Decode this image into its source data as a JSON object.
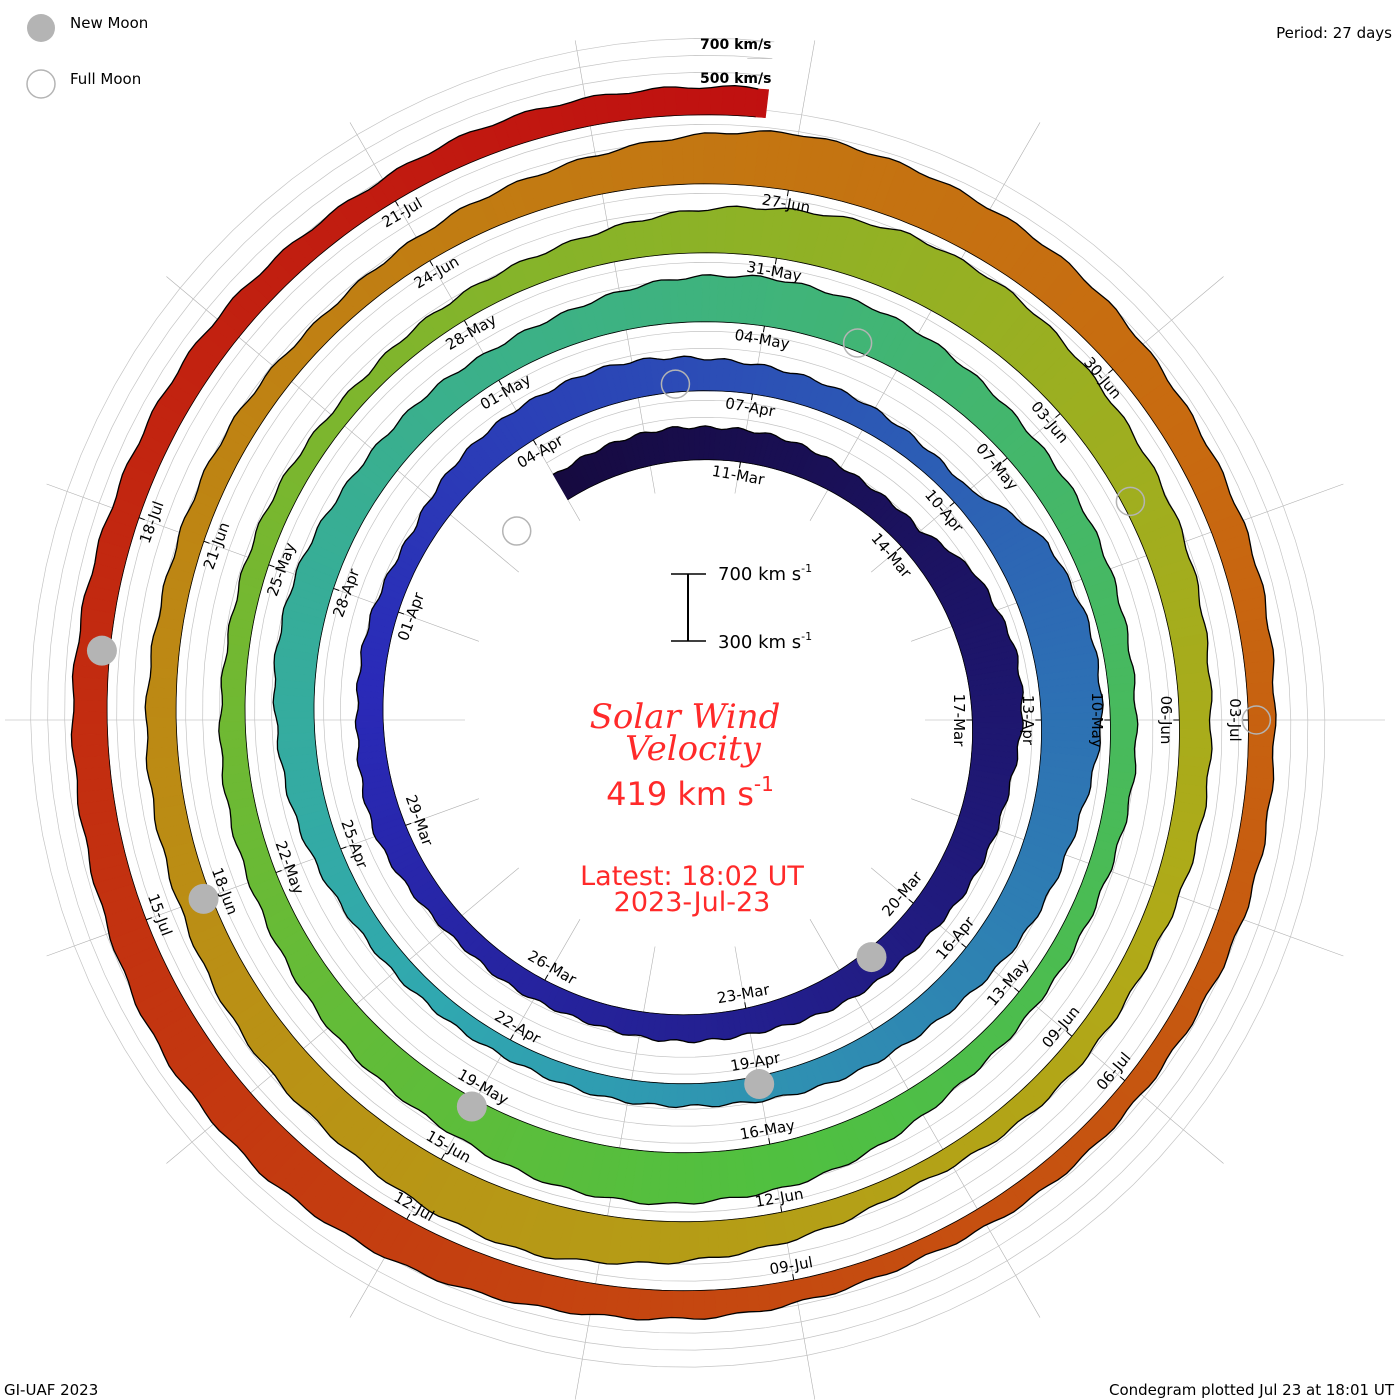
{
  "legend": {
    "new_moon": "New Moon",
    "full_moon": "Full Moon"
  },
  "period_label": "Period: 27 days",
  "credit": "GI-UAF 2023",
  "plotted": "Condegram plotted Jul 23 at 18:01 UT",
  "ref_labels": {
    "v700": "700 km/s",
    "v500": "500 km/s"
  },
  "scale_bar": {
    "top": "700 km s",
    "bottom": "300 km s",
    "exp": "-1"
  },
  "center": {
    "title1": "Solar Wind",
    "title2": "Velocity",
    "value": "419 km s",
    "value_exp": "-1",
    "latest": "Latest: 18:02 UT",
    "date": "2023-Jul-23"
  },
  "colors": {
    "text_red": "#ff2a2a",
    "moon": "#b4b4b4",
    "grid": "#b0b0b0",
    "ramp": [
      "#160a40",
      "#2a2ab8",
      "#30a8b0",
      "#50c040",
      "#b0aa18",
      "#c86a10",
      "#c01010"
    ]
  },
  "chart_data": {
    "type": "condegram-spiral",
    "title": "Solar Wind Velocity",
    "period_days": 27,
    "units": "km/s",
    "baseline_kms": 250,
    "reference_levels": [
      500,
      700
    ],
    "start_day_offset": -3,
    "day_zero": "11-Mar",
    "daily_velocity": [
      420,
      430,
      450,
      440,
      420,
      400,
      390,
      520,
      560,
      540,
      500,
      470,
      450,
      430,
      420,
      410,
      400,
      390,
      380,
      370,
      400,
      430,
      420,
      400,
      390,
      380,
      420,
      460,
      470,
      450,
      430,
      400,
      380,
      360,
      560,
      620,
      600,
      540,
      500,
      460,
      430,
      410,
      400,
      380,
      370,
      360,
      350,
      380,
      420,
      460,
      500,
      480,
      450,
      430,
      420,
      450,
      500,
      540,
      520,
      480,
      450,
      430,
      420,
      400,
      390,
      380,
      370,
      400,
      460,
      520,
      560,
      540,
      500,
      470,
      440,
      420,
      400,
      390,
      380,
      370,
      360,
      380,
      420,
      480,
      540,
      600,
      580,
      540,
      500,
      470,
      440,
      420,
      400,
      390,
      380,
      360,
      420,
      500,
      560,
      540,
      500,
      470,
      450,
      430,
      410,
      400,
      390,
      380,
      400,
      450,
      520,
      580,
      560,
      520,
      480,
      450,
      430,
      410,
      400,
      390,
      380,
      370,
      360,
      380,
      420,
      460,
      500,
      540,
      520,
      480,
      460,
      440,
      430,
      420,
      410,
      400,
      410,
      419
    ],
    "date_labels": [
      "11-Mar",
      "14-Mar",
      "17-Mar",
      "20-Mar",
      "23-Mar",
      "26-Mar",
      "29-Mar",
      "01-Apr",
      "04-Apr",
      "07-Apr",
      "10-Apr",
      "13-Apr",
      "16-Apr",
      "19-Apr",
      "22-Apr",
      "25-Apr",
      "28-Apr",
      "01-May",
      "04-May",
      "07-May",
      "10-May",
      "13-May",
      "16-May",
      "19-May",
      "22-May",
      "25-May",
      "28-May",
      "31-May",
      "03-Jun",
      "06-Jun",
      "09-Jun",
      "12-Jun",
      "15-Jun",
      "18-Jun",
      "21-Jun",
      "24-Jun",
      "27-Jun",
      "30-Jun",
      "03-Jul",
      "06-Jul",
      "09-Jul",
      "12-Jul",
      "15-Jul",
      "18-Jul",
      "21-Jul"
    ],
    "date_label_step_days": 3,
    "new_moons_day": [
      10,
      39,
      69,
      99,
      128
    ],
    "full_moons_day": [
      -4,
      26,
      55,
      85,
      114
    ],
    "end_day": 134.75
  }
}
